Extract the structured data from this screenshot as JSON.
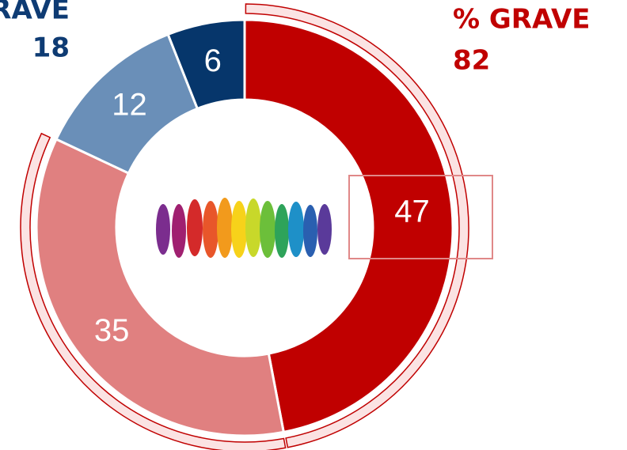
{
  "chart_data": {
    "type": "donut",
    "values": [
      47,
      35,
      12,
      6
    ],
    "colors": [
      "#c00000",
      "#e08080",
      "#6a8fb8",
      "#06366b"
    ],
    "left_header": {
      "title": "RAVE",
      "value": "18",
      "color": "#0e3b73"
    },
    "right_header": {
      "title": "% GRAVE",
      "value": "82",
      "color": "#c00000"
    }
  }
}
